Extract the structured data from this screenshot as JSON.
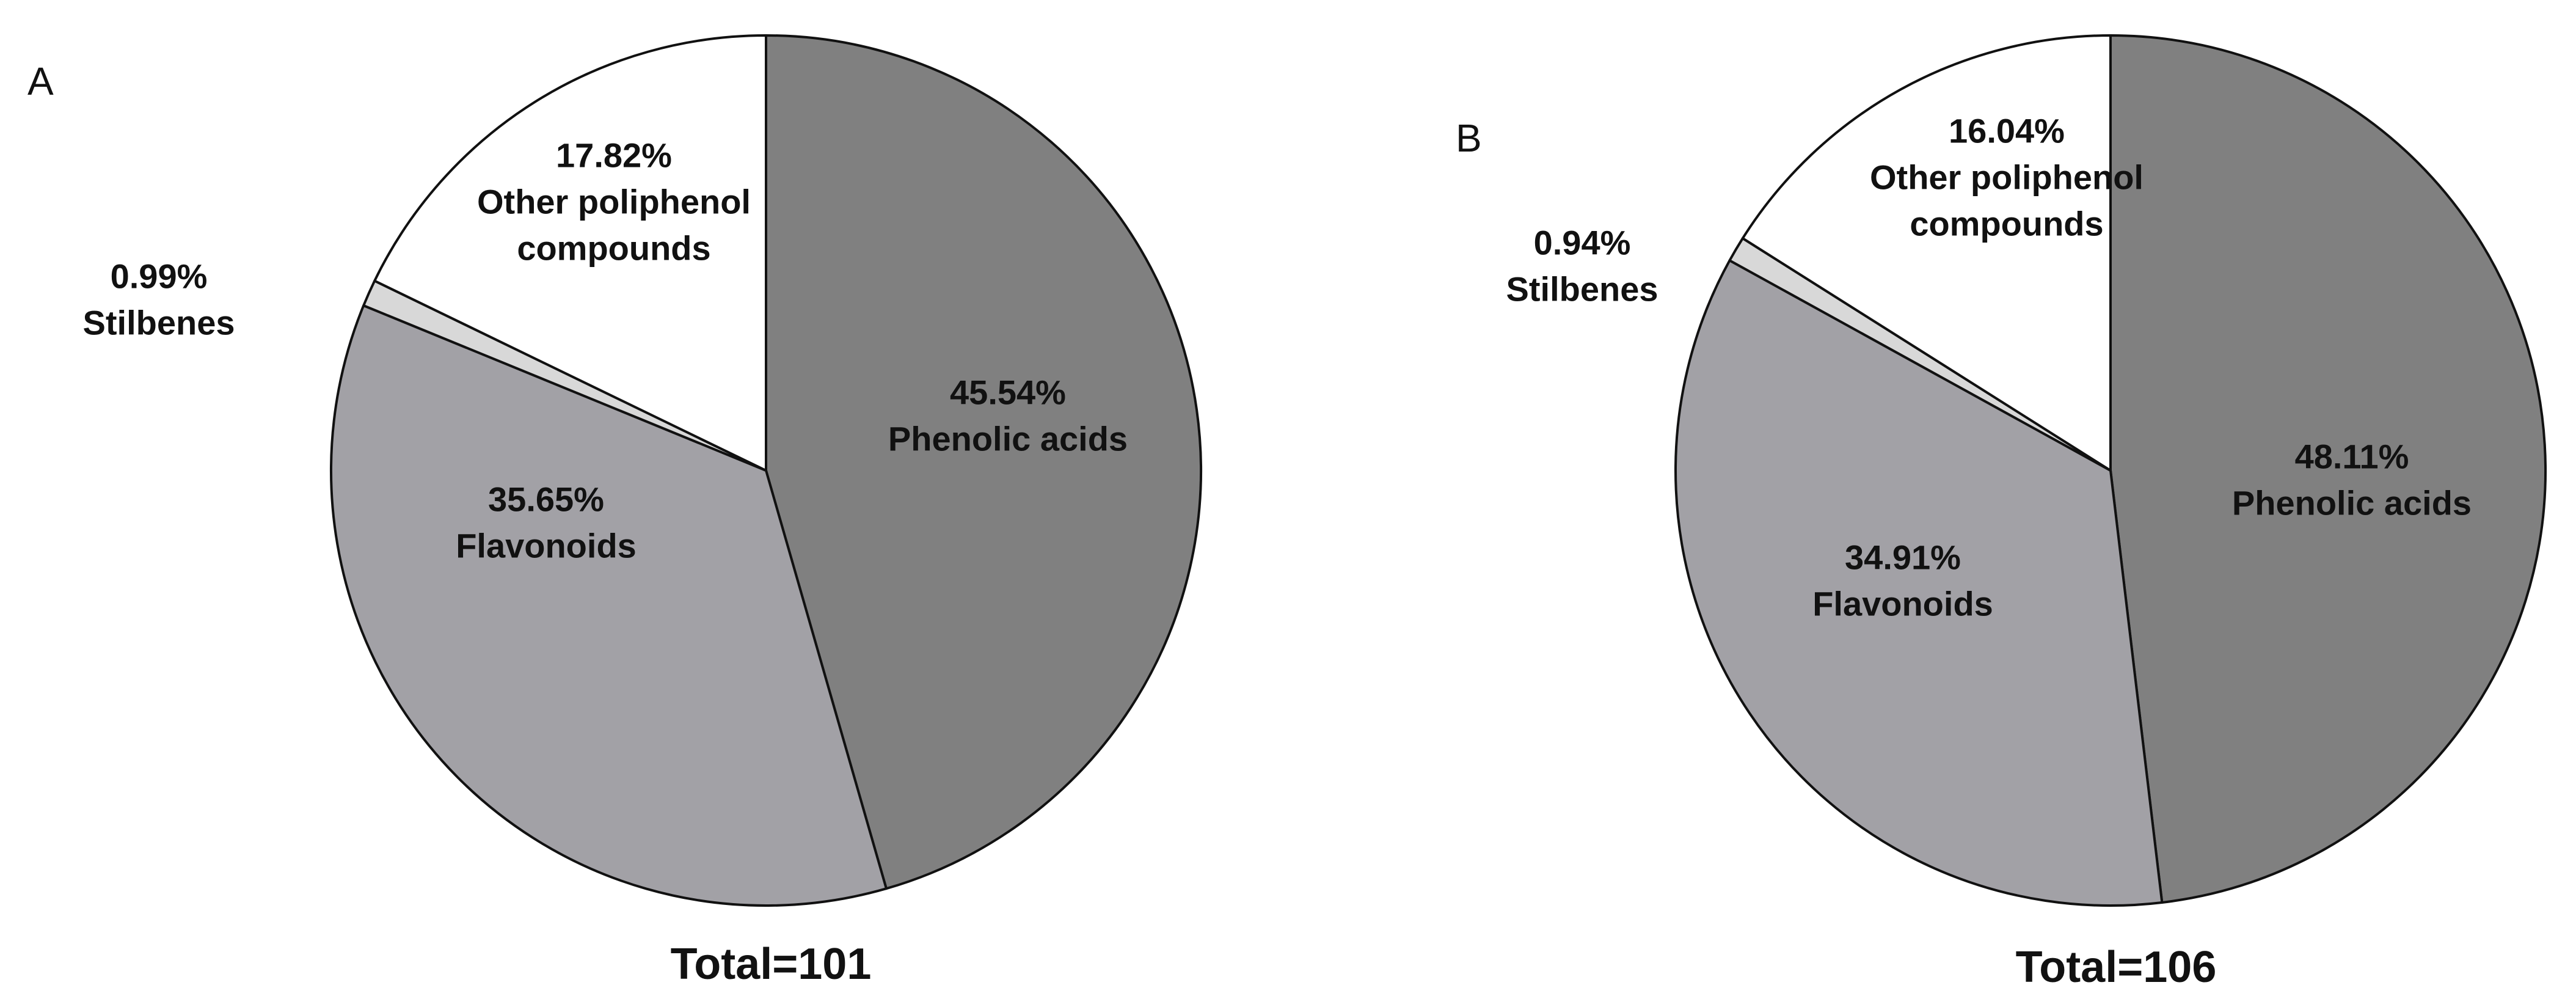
{
  "chart_data": [
    {
      "type": "pie",
      "panel_label": "A",
      "total_label": "Total=101",
      "slices": [
        {
          "category": "Phenolic acids",
          "value": 45.54,
          "value_label": "45.54%",
          "color": "#808080"
        },
        {
          "category": "Flavonoids",
          "value": 35.65,
          "value_label": "35.65%",
          "color": "#a2a1a6"
        },
        {
          "category": "Stilbenes",
          "value": 0.99,
          "value_label": "0.99%",
          "color": "#d8d8d8"
        },
        {
          "category": "Other poliphenol compounds",
          "category_lines": [
            "Other poliphenol",
            "compounds"
          ],
          "value": 17.82,
          "value_label": "17.82%",
          "color": "#ffffff"
        }
      ]
    },
    {
      "type": "pie",
      "panel_label": "B",
      "total_label": "Total=106",
      "slices": [
        {
          "category": "Phenolic acids",
          "value": 48.11,
          "value_label": "48.11%",
          "color": "#808080"
        },
        {
          "category": "Flavonoids",
          "value": 34.91,
          "value_label": "34.91%",
          "color": "#a2a1a6"
        },
        {
          "category": "Stilbenes",
          "value": 0.94,
          "value_label": "0.94%",
          "color": "#d8d8d8"
        },
        {
          "category": "Other poliphenol compounds",
          "category_lines": [
            "Other poliphenol",
            "compounds"
          ],
          "value": 16.04,
          "value_label": "16.04%",
          "color": "#ffffff"
        }
      ]
    }
  ]
}
